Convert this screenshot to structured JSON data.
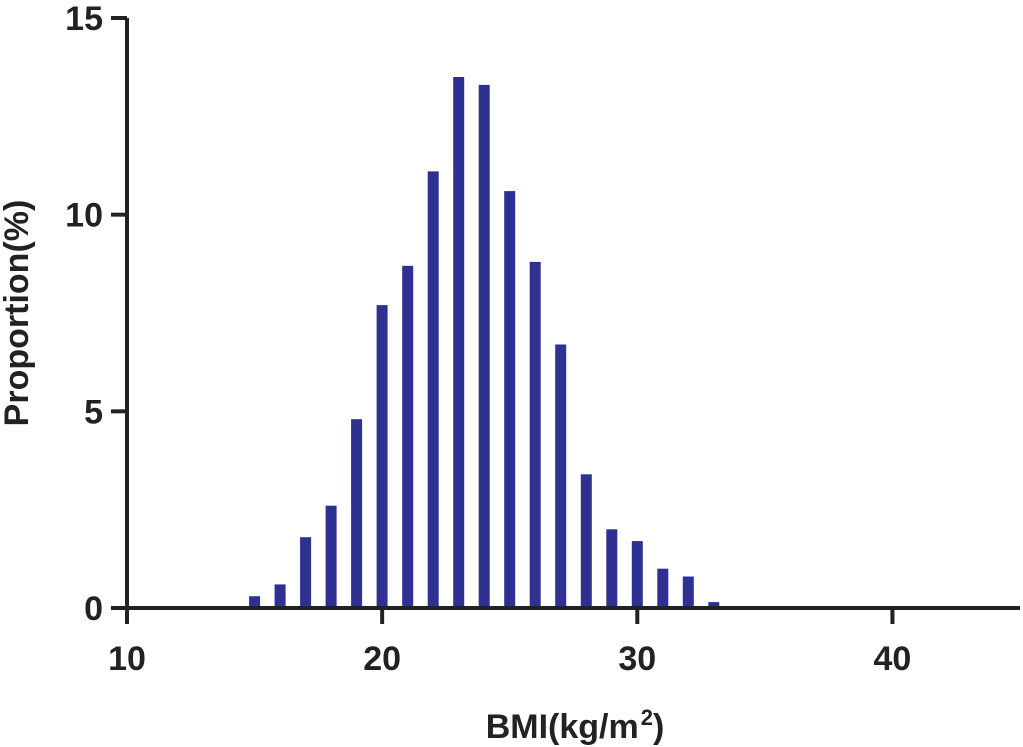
{
  "chart_data": {
    "type": "bar",
    "xlabel": "BMI(kg/m",
    "xlabel_superscript": "2",
    "xlabel_suffix": ")",
    "ylabel": "Proportion(%)",
    "xlim": [
      10,
      45
    ],
    "ylim": [
      0,
      15
    ],
    "x_ticks": [
      10,
      20,
      30,
      40
    ],
    "y_ticks": [
      0,
      5,
      10,
      15
    ],
    "x_tick_labels": [
      "10",
      "20",
      "30",
      "40"
    ],
    "y_tick_labels": [
      "0",
      "5",
      "10",
      "15"
    ],
    "grid": false,
    "bar_color": "#2E3192",
    "x": [
      15,
      16,
      17,
      18,
      19,
      20,
      21,
      22,
      23,
      24,
      25,
      26,
      27,
      28,
      29,
      30,
      31,
      32,
      33
    ],
    "values": [
      0.3,
      0.6,
      1.8,
      2.6,
      4.8,
      7.7,
      8.7,
      11.1,
      13.5,
      13.3,
      10.6,
      8.8,
      6.7,
      3.4,
      2.0,
      1.7,
      1.0,
      0.8,
      0.15
    ]
  }
}
